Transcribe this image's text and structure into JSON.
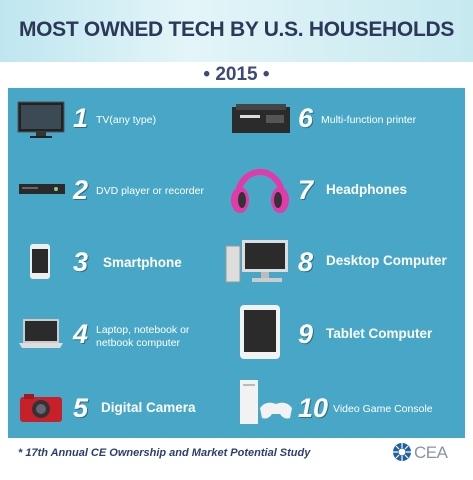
{
  "header": {
    "title": "MOST OWNED TECH BY U.S. HOUSEHOLDS",
    "year": "• 2015 •"
  },
  "items": [
    {
      "rank": 1,
      "label": "TV(any type)"
    },
    {
      "rank": 2,
      "label": "DVD player or recorder"
    },
    {
      "rank": 3,
      "label": "Smartphone"
    },
    {
      "rank": 4,
      "label": "Laptop, notebook or netbook computer"
    },
    {
      "rank": 5,
      "label": "Digital Camera"
    },
    {
      "rank": 6,
      "label": "Multi-function printer"
    },
    {
      "rank": 7,
      "label": "Headphones"
    },
    {
      "rank": 8,
      "label": "Desktop Computer"
    },
    {
      "rank": 9,
      "label": "Tablet Computer"
    },
    {
      "rank": 10,
      "label": "Video Game Console"
    }
  ],
  "footer": {
    "source": "* 17th Annual CE Ownership and Market Potential Study",
    "logo": "CEA"
  }
}
